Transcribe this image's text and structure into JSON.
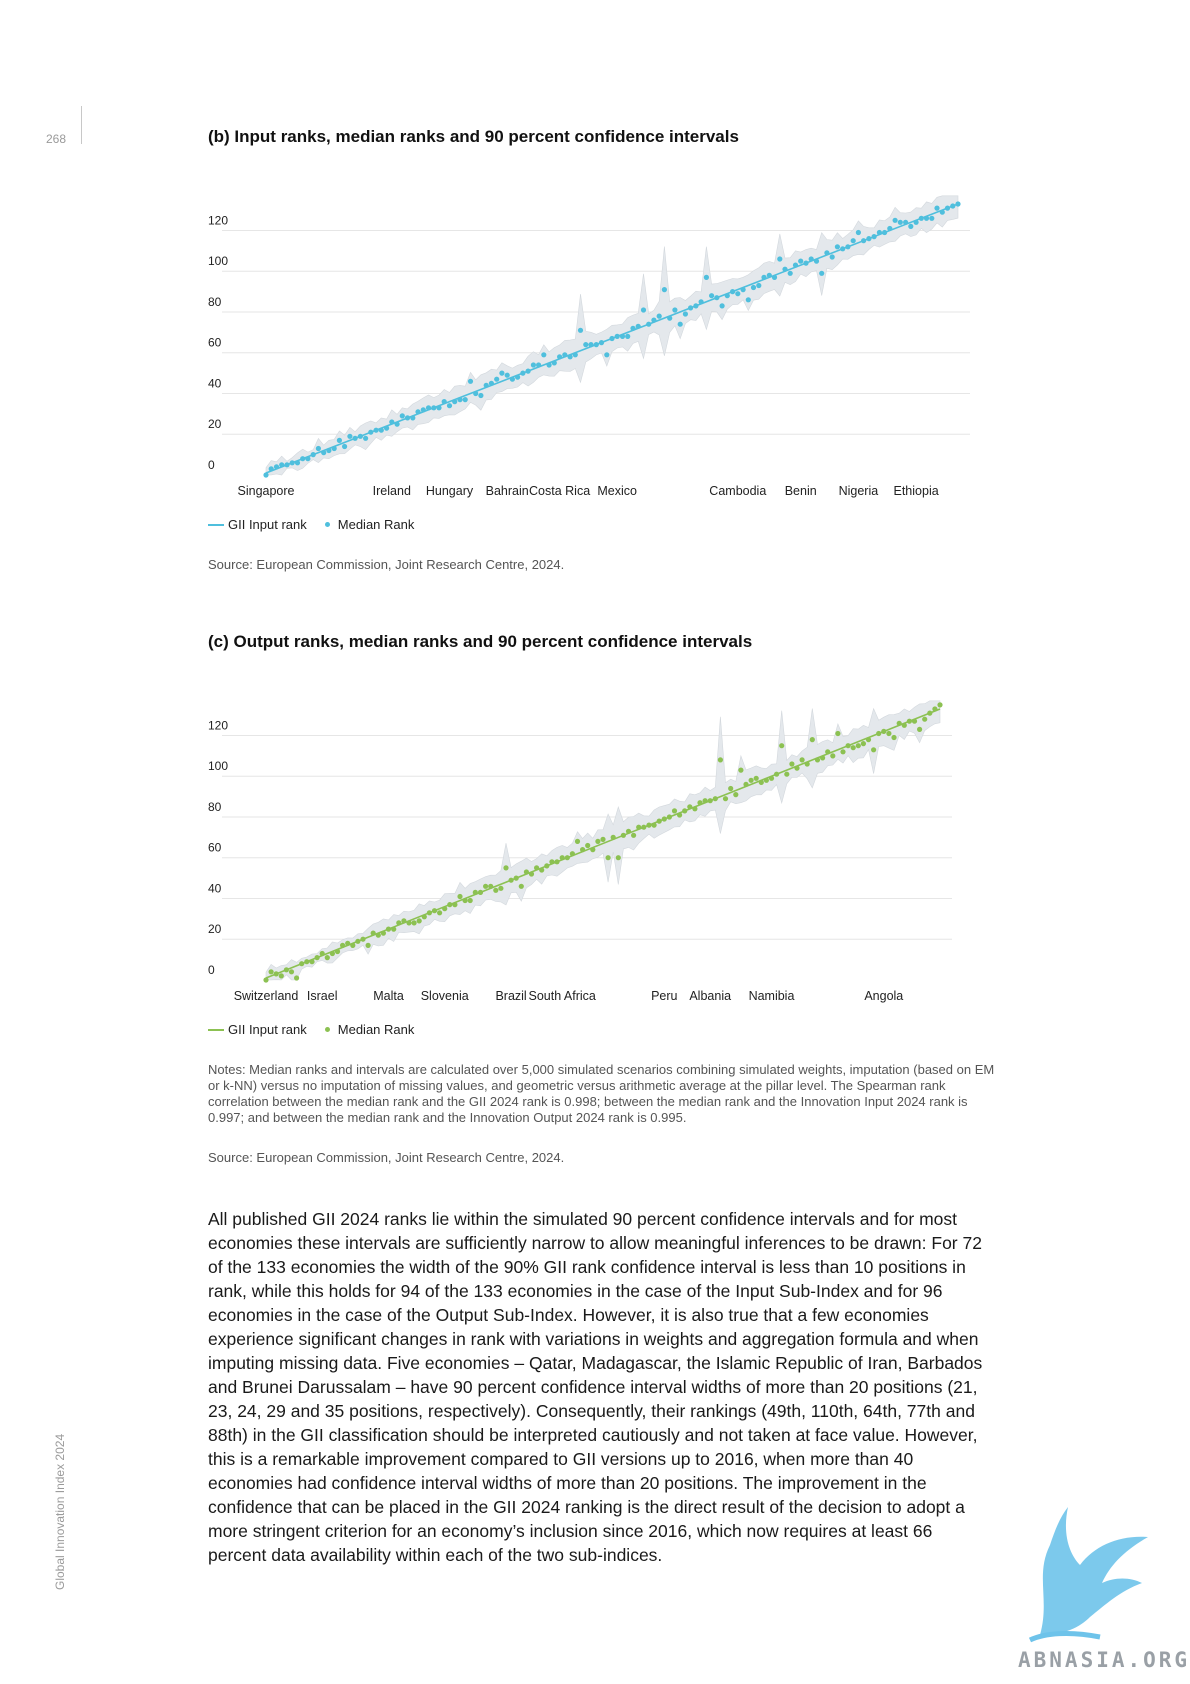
{
  "page_number": "268",
  "side_title": "Global Innovation Index 2024",
  "colors": {
    "input": "#4fbfdd",
    "output": "#8cc152",
    "band": "#e4e8ec",
    "grid": "#e6e6e6"
  },
  "figures": {
    "input": {
      "title": "(b) Input ranks, median ranks and 90 percent confidence intervals",
      "legend_line": "GII Input rank",
      "legend_dot": "Median Rank",
      "source": "Source: European Commission, Joint Research Centre, 2024."
    },
    "output": {
      "title": "(c) Output ranks, median ranks and  90 percent confidence intervals",
      "legend_line": "GII Input rank",
      "legend_dot": "Median Rank",
      "notes": "Notes: Median ranks and intervals are calculated over 5,000 simulated scenarios combining simulated weights, imputation (based on EM or k-NN) versus no imputation of missing values, and geometric versus arithmetic average at the pillar level. The Spearman rank correlation between the median rank and the GII 2024 rank is 0.998; between the median rank and the Innovation Input 2024 rank is 0.997; and between the median rank and the Innovation Output 2024 rank is 0.995.",
      "source": "Source: European Commission, Joint Research Centre, 2024."
    }
  },
  "chart_data": [
    {
      "type": "scatter",
      "title": "(b) Input ranks, median ranks and 90 percent confidence intervals",
      "ylim": [
        0,
        133
      ],
      "yticks": [
        0,
        20,
        40,
        60,
        80,
        100,
        120
      ],
      "x_labels": [
        {
          "name": "Singapore",
          "rank": 1
        },
        {
          "name": "Ireland",
          "rank": 25
        },
        {
          "name": "Hungary",
          "rank": 36
        },
        {
          "name": "Bahrain",
          "rank": 47
        },
        {
          "name": "Costa Rica",
          "rank": 57
        },
        {
          "name": "Mexico",
          "rank": 68
        },
        {
          "name": "Cambodia",
          "rank": 91
        },
        {
          "name": "Benin",
          "rank": 103
        },
        {
          "name": "Nigeria",
          "rank": 114
        },
        {
          "name": "Ethiopia",
          "rank": 125
        }
      ],
      "series": [
        {
          "name": "GII Input rank",
          "kind": "line"
        },
        {
          "name": "Median Rank",
          "kind": "dots"
        }
      ],
      "max_rank": 133,
      "deviations": {
        "40": 6,
        "42": -3,
        "46": 4,
        "54": 5,
        "61": 10,
        "66": -7,
        "73": 8,
        "77": 14,
        "80": -6,
        "85": 12,
        "88": -5,
        "93": -7,
        "99": 7,
        "107": -8,
        "114": 5,
        "121": 4
      },
      "band_spikes": {
        "61": 22,
        "73": 20,
        "77": 26,
        "85": 15,
        "99": 12,
        "107": 10
      },
      "legend": "bottom-left"
    },
    {
      "type": "scatter",
      "title": "(c) Output ranks, median ranks and  90 percent confidence intervals",
      "ylim": [
        0,
        133
      ],
      "yticks": [
        0,
        20,
        40,
        60,
        80,
        100,
        120
      ],
      "x_labels": [
        {
          "name": "Switzerland",
          "rank": 1
        },
        {
          "name": "Israel",
          "rank": 12
        },
        {
          "name": "Malta",
          "rank": 25
        },
        {
          "name": "Slovenia",
          "rank": 36
        },
        {
          "name": "Brazil",
          "rank": 49
        },
        {
          "name": "South Africa",
          "rank": 59
        },
        {
          "name": "Peru",
          "rank": 79
        },
        {
          "name": "Albania",
          "rank": 88
        },
        {
          "name": "Namibia",
          "rank": 100
        },
        {
          "name": "Angola",
          "rank": 122
        }
      ],
      "series": [
        {
          "name": "GII Input rank",
          "kind": "line"
        },
        {
          "name": "Median Rank",
          "kind": "dots"
        }
      ],
      "max_rank": 133,
      "deviations": {
        "7": -6,
        "21": -4,
        "48": 7,
        "51": -5,
        "62": 6,
        "68": -8,
        "70": -10,
        "90": 18,
        "94": 9,
        "102": 13,
        "108": 10,
        "113": 8,
        "120": -7,
        "124": -5,
        "129": -6
      },
      "band_spikes": {
        "48": 10,
        "68": 15,
        "70": 18,
        "90": 30,
        "102": 20,
        "108": 15,
        "120": 15
      },
      "legend": "bottom-left"
    }
  ],
  "body_paragraph": "All published GII 2024 ranks lie within the simulated 90 percent confidence intervals and for most economies these intervals are sufficiently narrow to allow meaningful inferences to be drawn: For 72 of the 133 economies the width of the 90% GII rank confidence interval is less than 10 positions in rank, while this holds for 94 of the 133 economies in the case of the Input Sub-Index and for 96 economies in the case of the Output Sub-Index. However, it is also true that a few economies experience significant changes in rank with variations in weights and aggregation formula and when imputing missing data. Five economies – Qatar, Madagascar, the Islamic Republic of Iran, Barbados and Brunei Darussalam – have 90 percent confidence interval widths of more than 20 positions (21, 23, 24, 29 and 35 positions, respectively). Consequently, their rankings (49th, 110th, 64th, 77th and 88th) in the GII classification should be interpreted cautiously and not taken at face value. However, this is a remarkable improvement compared to GII versions up to 2016, when more than 40 economies had confidence interval widths of more than 20 positions. The improvement in the confidence that can be placed in the GII 2024 ranking is the direct result of the decision to adopt a more stringent criterion for an economy’s inclusion since 2016, which now requires at least 66 percent data availability within each of the two sub-indices.",
  "watermark": "ABNASIA.ORG"
}
